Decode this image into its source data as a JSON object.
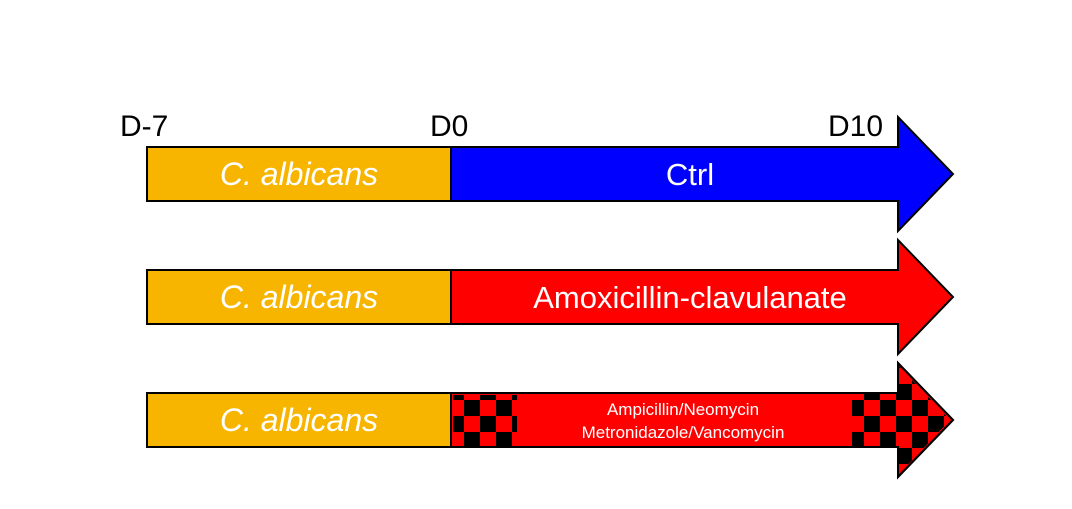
{
  "timeline": {
    "ticks": [
      {
        "label": "D-7"
      },
      {
        "label": "D0"
      },
      {
        "label": "D10"
      }
    ]
  },
  "colors": {
    "pretreatment": "#F7B500",
    "ctrl": "#0000FF",
    "antibiotic": "#FF0000",
    "pattern_dark": "#000000",
    "outline": "#000000",
    "label_text": "#FFFFFF"
  },
  "rows": [
    {
      "pretreatment_label": "C. albicans",
      "treatment_lines": [
        "Ctrl"
      ],
      "treatment_color": "ctrl",
      "checkered_ends": false
    },
    {
      "pretreatment_label": "C. albicans",
      "treatment_lines": [
        "Amoxicillin-clavulanate"
      ],
      "treatment_color": "antibiotic",
      "checkered_ends": false
    },
    {
      "pretreatment_label": "C. albicans",
      "treatment_lines": [
        "Ampicillin/Neomycin",
        "Metronidazole/Vancomycin"
      ],
      "treatment_color": "antibiotic",
      "checkered_ends": true
    }
  ]
}
